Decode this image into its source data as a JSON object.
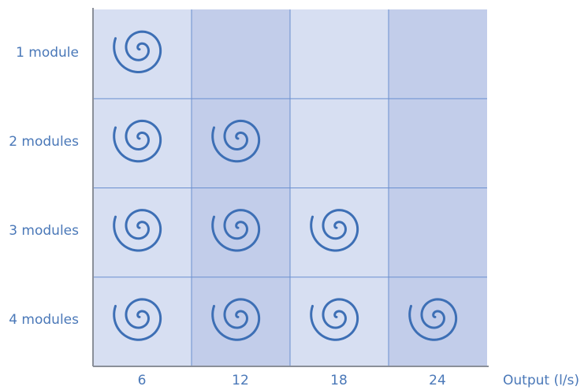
{
  "rows": [
    {
      "label": "1 module",
      "spirals": 1
    },
    {
      "label": "2 modules",
      "spirals": 2
    },
    {
      "label": "3 modules",
      "spirals": 3
    },
    {
      "label": "4 modules",
      "spirals": 4
    }
  ],
  "columns": [
    "6",
    "12",
    "18",
    "24"
  ],
  "axis_label": "Output (l/s)",
  "colors": {
    "light_cell": "#d7dff2",
    "dark_cell": "#c2cdea",
    "grid_line": "#6a8fcf",
    "axis_line": "#8a8f99",
    "spiral": "#3d6fb5",
    "text": "#4a78b8"
  },
  "icon": "spiral-icon"
}
